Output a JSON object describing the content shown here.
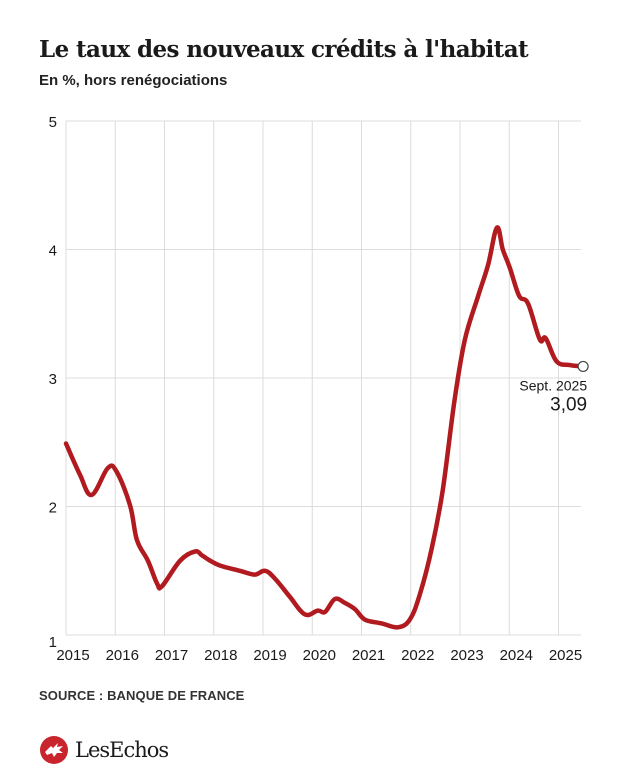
{
  "header": {
    "title": "Le taux des nouveaux crédits à l'habitat",
    "subtitle": "En %, hors renégociations"
  },
  "footer": {
    "source": "SOURCE : BANQUE DE FRANCE",
    "logo_text": "LesEchos",
    "logo_icon": "les-echos-dragon-icon"
  },
  "colors": {
    "line": "#b11a1f",
    "grid": "#dcdcdc",
    "brand": "#c8262c"
  },
  "chart_data": {
    "type": "line",
    "title": "Le taux des nouveaux crédits à l'habitat",
    "subtitle": "En %, hors renégociations",
    "xlabel": "",
    "ylabel": "",
    "xlim": [
      2015,
      2025.55
    ],
    "ylim": [
      1,
      5
    ],
    "grid": true,
    "x_ticks": [
      "2015",
      "2016",
      "2017",
      "2018",
      "2019",
      "2020",
      "2021",
      "2022",
      "2023",
      "2024",
      "2025"
    ],
    "y_ticks": [
      "1",
      "2",
      "3",
      "4",
      "5"
    ],
    "series": [
      {
        "name": "Taux des nouveaux crédits à l'habitat",
        "x": [
          2015.0,
          2015.28,
          2015.52,
          2015.85,
          2016.03,
          2016.3,
          2016.44,
          2016.66,
          2016.85,
          2016.95,
          2017.32,
          2017.62,
          2017.76,
          2017.92,
          2018.13,
          2018.53,
          2018.83,
          2019.04,
          2019.24,
          2019.54,
          2019.85,
          2020.11,
          2020.26,
          2020.46,
          2020.66,
          2020.87,
          2021.07,
          2021.41,
          2021.74,
          2021.98,
          2022.18,
          2022.43,
          2022.65,
          2022.89,
          2023.1,
          2023.37,
          2023.57,
          2023.75,
          2023.87,
          2024.01,
          2024.2,
          2024.38,
          2024.62,
          2024.74,
          2024.96,
          2025.23,
          2025.5
        ],
        "values": [
          2.49,
          2.25,
          2.09,
          2.3,
          2.27,
          2.01,
          1.74,
          1.58,
          1.4,
          1.38,
          1.58,
          1.65,
          1.62,
          1.58,
          1.54,
          1.5,
          1.47,
          1.5,
          1.44,
          1.3,
          1.16,
          1.19,
          1.18,
          1.28,
          1.25,
          1.2,
          1.12,
          1.09,
          1.06,
          1.12,
          1.31,
          1.68,
          2.13,
          2.83,
          3.3,
          3.64,
          3.88,
          4.17,
          4.0,
          3.86,
          3.64,
          3.58,
          3.3,
          3.31,
          3.13,
          3.1,
          3.09
        ]
      }
    ],
    "annotation": {
      "label": "Sept. 2025",
      "value_label": "3,09",
      "x": 2025.5,
      "y": 3.09
    }
  }
}
